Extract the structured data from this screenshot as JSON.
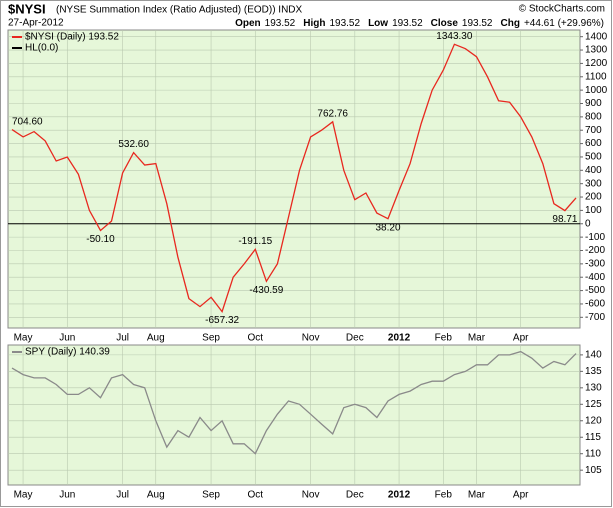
{
  "header": {
    "symbol": "$NYSI",
    "description": "(NYSE Summation Index (Ratio Adjusted) (EOD)) INDX",
    "date": "27-Apr-2012",
    "copyright": "© StockCharts.com",
    "quote": [
      {
        "label": "Open",
        "value": "193.52"
      },
      {
        "label": "High",
        "value": "193.52"
      },
      {
        "label": "Low",
        "value": "193.52"
      },
      {
        "label": "Close",
        "value": "193.52"
      },
      {
        "label": "Chg",
        "value": "+44.61 (+29.96%)"
      }
    ]
  },
  "chart_data": [
    {
      "type": "line",
      "background": "#e6f7d9",
      "grid": true,
      "legend": "upper-left",
      "ylim": [
        -780,
        1450
      ],
      "yticks": [
        -700,
        -600,
        -500,
        -400,
        -300,
        -200,
        -100,
        0,
        100,
        200,
        300,
        400,
        500,
        600,
        700,
        800,
        900,
        1000,
        1100,
        1200,
        1300,
        1400
      ],
      "categories": [
        null,
        "May",
        null,
        null,
        null,
        "Jun",
        null,
        null,
        null,
        null,
        "Jul",
        null,
        null,
        "Aug",
        null,
        null,
        null,
        null,
        "Sep",
        null,
        null,
        null,
        "Oct",
        null,
        null,
        null,
        null,
        "Nov",
        null,
        null,
        null,
        "Dec",
        null,
        null,
        null,
        "2012",
        null,
        null,
        null,
        "Feb",
        null,
        null,
        "Mar",
        null,
        null,
        null,
        "Apr",
        null,
        null,
        null,
        null,
        null
      ],
      "series": [
        {
          "name": "$NYSI (Daily) 193.52",
          "color": "#e8281f",
          "values": [
            704.6,
            650,
            690,
            620,
            470,
            500,
            370,
            100,
            -50.1,
            20,
            380,
            532.6,
            440,
            450,
            150,
            -250,
            -560,
            -620,
            -550,
            -657.32,
            -400,
            -300,
            -191.15,
            -430.59,
            -300,
            50,
            400,
            650,
            700,
            762.76,
            400,
            180,
            230,
            80,
            38.2,
            250,
            450,
            750,
            1000,
            1150,
            1343.3,
            1310,
            1250,
            1100,
            920,
            910,
            800,
            650,
            450,
            150,
            98.71,
            193.52
          ],
          "value_labels": [
            "704.60",
            null,
            null,
            null,
            null,
            null,
            null,
            null,
            "-50.10",
            null,
            null,
            "532.60",
            null,
            null,
            null,
            null,
            null,
            null,
            null,
            "-657.32",
            null,
            null,
            "-191.15",
            "-430.59",
            null,
            null,
            null,
            null,
            null,
            "762.76",
            null,
            null,
            null,
            null,
            "38.20",
            null,
            null,
            null,
            null,
            null,
            "1343.30",
            null,
            null,
            null,
            null,
            null,
            null,
            null,
            null,
            null,
            "98.71",
            null
          ]
        }
      ],
      "reference_lines": [
        {
          "name": "HL(0.0)",
          "value": 0,
          "color": "#000000"
        }
      ]
    },
    {
      "type": "line",
      "background": "#e6f7d9",
      "grid": true,
      "legend": "upper-left",
      "ylim": [
        100.5,
        143
      ],
      "yticks": [
        105,
        110,
        115,
        120,
        125,
        130,
        135,
        140
      ],
      "categories": [
        null,
        "May",
        null,
        null,
        null,
        "Jun",
        null,
        null,
        null,
        null,
        "Jul",
        null,
        null,
        "Aug",
        null,
        null,
        null,
        null,
        "Sep",
        null,
        null,
        null,
        "Oct",
        null,
        null,
        null,
        null,
        "Nov",
        null,
        null,
        null,
        "Dec",
        null,
        null,
        null,
        "2012",
        null,
        null,
        null,
        "Feb",
        null,
        null,
        "Mar",
        null,
        null,
        null,
        "Apr",
        null,
        null,
        null,
        null,
        null
      ],
      "series": [
        {
          "name": "SPY (Daily) 140.39",
          "color": "#8a8a8a",
          "values": [
            136,
            134,
            133,
            133,
            131,
            128,
            128,
            130,
            127,
            133,
            134,
            131,
            130,
            120,
            112,
            117,
            115,
            121,
            117,
            120,
            113,
            113,
            110,
            117,
            122,
            126,
            125,
            122,
            119,
            116,
            124,
            125,
            124,
            121,
            126,
            128,
            129,
            131,
            132,
            132,
            134,
            135,
            137,
            137,
            140,
            140,
            141,
            139,
            136,
            138,
            137,
            140.39
          ]
        }
      ]
    }
  ]
}
